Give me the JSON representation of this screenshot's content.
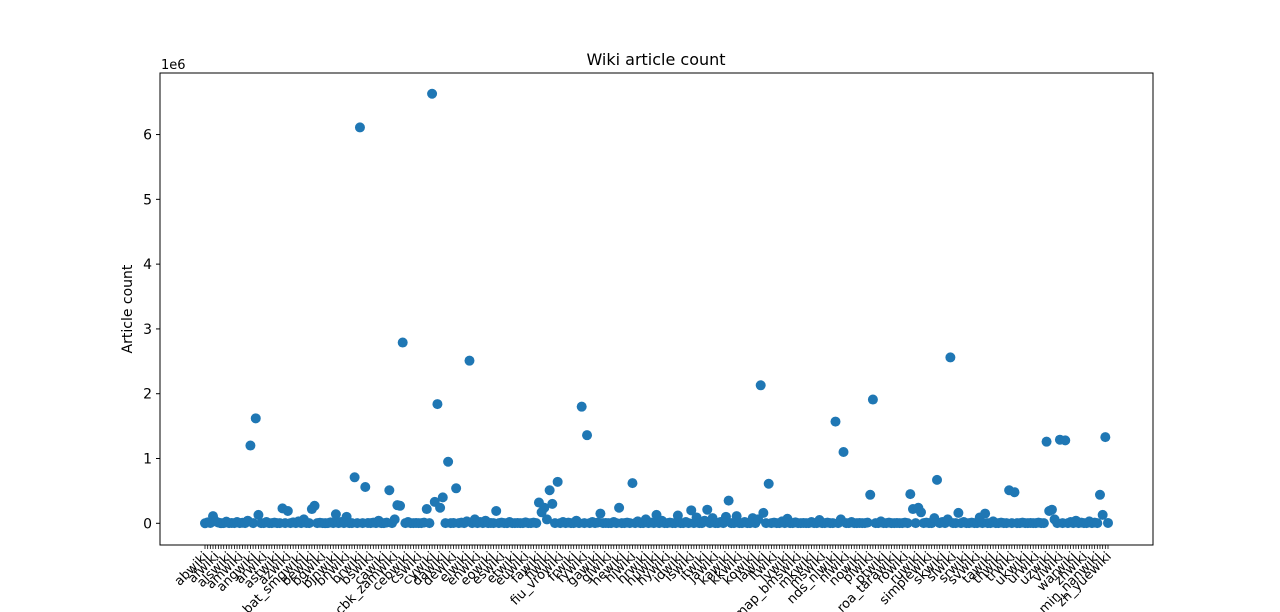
{
  "chart_data": {
    "type": "scatter",
    "title": "Wiki article count",
    "ylabel": "Article count",
    "xlabel": "",
    "y_scale_label": "1e6",
    "y_ticks": [
      "0",
      "1",
      "2",
      "3",
      "4",
      "5",
      "6"
    ],
    "y_tick_values": [
      0,
      1000000,
      2000000,
      3000000,
      4000000,
      5000000,
      6000000
    ],
    "ylim": [
      -335000,
      6950000
    ],
    "n_points": 300,
    "x_tick_labels_visible": [
      "abwiki",
      "afwiki",
      "alswiki",
      "amwiki",
      "angwiki",
      "arwiki",
      "astwiki",
      "azwiki",
      "bat_smgwiki",
      "bewiki",
      "bgwiki",
      "bjnwiki",
      "bnwiki",
      "brwiki",
      "bswiki",
      "cawiki",
      "cbk_zamwiki",
      "cebwiki",
      "cswiki",
      "cywiki",
      "dawiki",
      "dewiki",
      "elwiki",
      "enwiki",
      "eowiki",
      "eswiki",
      "etwiki",
      "euwiki",
      "fawiki",
      "fiwiki",
      "fiu_vrowiki",
      "frwiki",
      "fywiki",
      "gawiki",
      "glwiki",
      "hewiki",
      "hiwiki",
      "hrwiki",
      "huwiki",
      "hywiki",
      "idwiki",
      "iswiki",
      "itwiki",
      "jawiki",
      "kawiki",
      "kkwiki",
      "kowiki",
      "lawiki",
      "ltwiki",
      "lvwiki",
      "map_bmswiki",
      "mkwiki",
      "mswiki",
      "nds_nlwiki",
      "nlwiki",
      "nowiki",
      "plwiki",
      "ptwiki",
      "roa_tarawiki",
      "rowiki",
      "ruwiki",
      "simplewiki",
      "skwiki",
      "slwiki",
      "srwiki",
      "svwiki",
      "tawiki",
      "thwiki",
      "trwiki",
      "ukwiki",
      "urwiki",
      "uzwiki",
      "viwiki",
      "warwiki",
      "zhwiki",
      "zh_min_nanwiki",
      "zh_yuewiki"
    ],
    "points": [
      {
        "i": 1,
        "y": 1000
      },
      {
        "i": 2,
        "y": 15000
      },
      {
        "i": 3,
        "y": 5000
      },
      {
        "i": 4,
        "y": 110000
      },
      {
        "i": 5,
        "y": 30000
      },
      {
        "i": 6,
        "y": 10000
      },
      {
        "i": 7,
        "y": 2000
      },
      {
        "i": 9,
        "y": 25000
      },
      {
        "i": 11,
        "y": 5000
      },
      {
        "i": 13,
        "y": 20000
      },
      {
        "i": 15,
        "y": 8000
      },
      {
        "i": 17,
        "y": 40000
      },
      {
        "i": 18,
        "y": 1200000
      },
      {
        "i": 20,
        "y": 1620000
      },
      {
        "i": 21,
        "y": 130000
      },
      {
        "i": 24,
        "y": 20000
      },
      {
        "i": 27,
        "y": 10000
      },
      {
        "i": 29,
        "y": 3000
      },
      {
        "i": 30,
        "y": 230000
      },
      {
        "i": 32,
        "y": 190000
      },
      {
        "i": 34,
        "y": 15000
      },
      {
        "i": 36,
        "y": 30000
      },
      {
        "i": 38,
        "y": 60000
      },
      {
        "i": 39,
        "y": 5000
      },
      {
        "i": 41,
        "y": 220000
      },
      {
        "i": 42,
        "y": 270000
      },
      {
        "i": 44,
        "y": 8000
      },
      {
        "i": 46,
        "y": 2000
      },
      {
        "i": 48,
        "y": 15000
      },
      {
        "i": 50,
        "y": 140000
      },
      {
        "i": 52,
        "y": 20000
      },
      {
        "i": 54,
        "y": 100000
      },
      {
        "i": 57,
        "y": 710000
      },
      {
        "i": 59,
        "y": 6110000
      },
      {
        "i": 61,
        "y": 560000
      },
      {
        "i": 62,
        "y": 5000
      },
      {
        "i": 64,
        "y": 10000
      },
      {
        "i": 66,
        "y": 40000
      },
      {
        "i": 69,
        "y": 10000
      },
      {
        "i": 70,
        "y": 510000
      },
      {
        "i": 72,
        "y": 60000
      },
      {
        "i": 73,
        "y": 280000
      },
      {
        "i": 74,
        "y": 270000
      },
      {
        "i": 75,
        "y": 2790000
      },
      {
        "i": 77,
        "y": 20000
      },
      {
        "i": 80,
        "y": 5000
      },
      {
        "i": 83,
        "y": 10000
      },
      {
        "i": 84,
        "y": 220000
      },
      {
        "i": 86,
        "y": 6630000
      },
      {
        "i": 87,
        "y": 330000
      },
      {
        "i": 88,
        "y": 1840000
      },
      {
        "i": 89,
        "y": 240000
      },
      {
        "i": 90,
        "y": 400000
      },
      {
        "i": 92,
        "y": 950000
      },
      {
        "i": 94,
        "y": 5000
      },
      {
        "i": 95,
        "y": 540000
      },
      {
        "i": 97,
        "y": 10000
      },
      {
        "i": 99,
        "y": 30000
      },
      {
        "i": 100,
        "y": 2510000
      },
      {
        "i": 102,
        "y": 60000
      },
      {
        "i": 104,
        "y": 20000
      },
      {
        "i": 106,
        "y": 40000
      },
      {
        "i": 108,
        "y": 5000
      },
      {
        "i": 110,
        "y": 190000
      },
      {
        "i": 112,
        "y": 10000
      },
      {
        "i": 115,
        "y": 20000
      },
      {
        "i": 118,
        "y": 5000
      },
      {
        "i": 121,
        "y": 15000
      },
      {
        "i": 124,
        "y": 10000
      },
      {
        "i": 126,
        "y": 320000
      },
      {
        "i": 127,
        "y": 170000
      },
      {
        "i": 128,
        "y": 240000
      },
      {
        "i": 129,
        "y": 60000
      },
      {
        "i": 130,
        "y": 510000
      },
      {
        "i": 131,
        "y": 300000
      },
      {
        "i": 133,
        "y": 640000
      },
      {
        "i": 135,
        "y": 20000
      },
      {
        "i": 137,
        "y": 10000
      },
      {
        "i": 140,
        "y": 40000
      },
      {
        "i": 142,
        "y": 1800000
      },
      {
        "i": 144,
        "y": 1360000
      },
      {
        "i": 146,
        "y": 20000
      },
      {
        "i": 148,
        "y": 10000
      },
      {
        "i": 149,
        "y": 150000
      },
      {
        "i": 151,
        "y": 5000
      },
      {
        "i": 154,
        "y": 20000
      },
      {
        "i": 156,
        "y": 240000
      },
      {
        "i": 159,
        "y": 10000
      },
      {
        "i": 161,
        "y": 620000
      },
      {
        "i": 163,
        "y": 30000
      },
      {
        "i": 166,
        "y": 60000
      },
      {
        "i": 168,
        "y": 10000
      },
      {
        "i": 170,
        "y": 130000
      },
      {
        "i": 172,
        "y": 40000
      },
      {
        "i": 175,
        "y": 10000
      },
      {
        "i": 178,
        "y": 120000
      },
      {
        "i": 181,
        "y": 20000
      },
      {
        "i": 183,
        "y": 200000
      },
      {
        "i": 185,
        "y": 90000
      },
      {
        "i": 188,
        "y": 40000
      },
      {
        "i": 189,
        "y": 210000
      },
      {
        "i": 191,
        "y": 80000
      },
      {
        "i": 194,
        "y": 20000
      },
      {
        "i": 196,
        "y": 100000
      },
      {
        "i": 197,
        "y": 350000
      },
      {
        "i": 200,
        "y": 110000
      },
      {
        "i": 203,
        "y": 20000
      },
      {
        "i": 206,
        "y": 80000
      },
      {
        "i": 208,
        "y": 60000
      },
      {
        "i": 209,
        "y": 2130000
      },
      {
        "i": 210,
        "y": 160000
      },
      {
        "i": 212,
        "y": 610000
      },
      {
        "i": 214,
        "y": 10000
      },
      {
        "i": 217,
        "y": 30000
      },
      {
        "i": 219,
        "y": 70000
      },
      {
        "i": 222,
        "y": 15000
      },
      {
        "i": 225,
        "y": 5000
      },
      {
        "i": 228,
        "y": 20000
      },
      {
        "i": 231,
        "y": 50000
      },
      {
        "i": 234,
        "y": 10000
      },
      {
        "i": 237,
        "y": 1570000
      },
      {
        "i": 239,
        "y": 60000
      },
      {
        "i": 240,
        "y": 1100000
      },
      {
        "i": 243,
        "y": 20000
      },
      {
        "i": 246,
        "y": 5000
      },
      {
        "i": 249,
        "y": 10000
      },
      {
        "i": 250,
        "y": 440000
      },
      {
        "i": 251,
        "y": 1910000
      },
      {
        "i": 254,
        "y": 30000
      },
      {
        "i": 257,
        "y": 10000
      },
      {
        "i": 260,
        "y": 5000
      },
      {
        "i": 263,
        "y": 10000
      },
      {
        "i": 265,
        "y": 450000
      },
      {
        "i": 266,
        "y": 220000
      },
      {
        "i": 268,
        "y": 240000
      },
      {
        "i": 269,
        "y": 170000
      },
      {
        "i": 271,
        "y": 10000
      },
      {
        "i": 274,
        "y": 80000
      },
      {
        "i": 275,
        "y": 670000
      },
      {
        "i": 277,
        "y": 20000
      },
      {
        "i": 279,
        "y": 60000
      },
      {
        "i": 280,
        "y": 2560000
      },
      {
        "i": 283,
        "y": 160000
      },
      {
        "i": 285,
        "y": 20000
      },
      {
        "i": 288,
        "y": 10000
      },
      {
        "i": 291,
        "y": 90000
      },
      {
        "i": 293,
        "y": 150000
      },
      {
        "i": 296,
        "y": 30000
      },
      {
        "i": 299,
        "y": 10000
      },
      {
        "i": 302,
        "y": 510000
      },
      {
        "i": 304,
        "y": 480000
      },
      {
        "i": 307,
        "y": 10000
      },
      {
        "i": 310,
        "y": 5000
      },
      {
        "i": 313,
        "y": 10000
      },
      {
        "i": 316,
        "y": 1260000
      },
      {
        "i": 317,
        "y": 190000
      },
      {
        "i": 318,
        "y": 210000
      },
      {
        "i": 319,
        "y": 60000
      },
      {
        "i": 321,
        "y": 1290000
      },
      {
        "i": 323,
        "y": 1280000
      },
      {
        "i": 325,
        "y": 20000
      },
      {
        "i": 327,
        "y": 40000
      },
      {
        "i": 329,
        "y": 10000
      },
      {
        "i": 332,
        "y": 30000
      },
      {
        "i": 334,
        "y": 10000
      },
      {
        "i": 336,
        "y": 440000
      },
      {
        "i": 337,
        "y": 130000
      },
      {
        "i": 338,
        "y": 1330000
      },
      {
        "i": 339,
        "y": 5000
      }
    ],
    "fill_count": 339,
    "color": "#1f77b4",
    "grid": false,
    "legend": "none"
  }
}
